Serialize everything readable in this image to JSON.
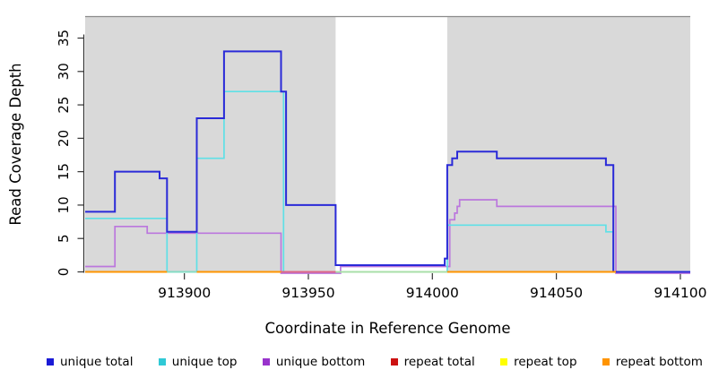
{
  "figure": {
    "background": "#ffffff",
    "plot_background": "#d9d9d9",
    "highlight_background": "#ffffff"
  },
  "x_axis": {
    "label": "Coordinate in Reference Genome",
    "ticks": [
      913900,
      913950,
      914000,
      914050,
      914100
    ]
  },
  "y_axis": {
    "label": "Read Coverage Depth",
    "ticks": [
      0,
      5,
      10,
      15,
      20,
      25,
      30,
      35
    ]
  },
  "legend": {
    "items": [
      {
        "label": "unique total",
        "color": "#1a1ad6"
      },
      {
        "label": "unique top",
        "color": "#2fc9d6"
      },
      {
        "label": "unique bottom",
        "color": "#9933cc"
      },
      {
        "label": "repeat total",
        "color": "#cc1111"
      },
      {
        "label": "repeat top",
        "color": "#ffff00"
      },
      {
        "label": "repeat bottom",
        "color": "#ff9400"
      }
    ]
  },
  "chart_data": {
    "type": "line",
    "step": true,
    "title": "",
    "xlabel": "Coordinate in Reference Genome",
    "ylabel": "Read Coverage Depth",
    "x_range": [
      913860,
      914104
    ],
    "y_range": [
      0,
      38
    ],
    "grid": false,
    "white_highlight_region": [
      913961,
      914006
    ],
    "series": [
      {
        "name": "unique total",
        "color": "#2a2ad8",
        "width": 2.0,
        "points": [
          [
            913860,
            9
          ],
          [
            913872,
            15
          ],
          [
            913890,
            14
          ],
          [
            913893,
            6
          ],
          [
            913905,
            23
          ],
          [
            913916,
            33
          ],
          [
            913939,
            27
          ],
          [
            913941,
            10
          ],
          [
            913961,
            1
          ],
          [
            914005,
            2
          ],
          [
            914006,
            16
          ],
          [
            914008,
            17
          ],
          [
            914010,
            18
          ],
          [
            914026,
            17
          ],
          [
            914070,
            16
          ],
          [
            914073,
            0
          ],
          [
            914104,
            0
          ]
        ]
      },
      {
        "name": "unique top",
        "color": "#5fe0e6",
        "width": 1.7,
        "points": [
          [
            913860,
            8
          ],
          [
            913893,
            0
          ],
          [
            913905,
            17
          ],
          [
            913916,
            27
          ],
          [
            913940,
            0
          ],
          [
            914006,
            7
          ],
          [
            914070,
            6
          ],
          [
            914073,
            0
          ],
          [
            914104,
            0
          ]
        ]
      },
      {
        "name": "unique bottom",
        "color": "#bb77dd",
        "width": 1.7,
        "points": [
          [
            913860,
            1
          ],
          [
            913872,
            7
          ],
          [
            913885,
            6
          ],
          [
            913939,
            0
          ],
          [
            913963,
            1
          ],
          [
            914007,
            8
          ],
          [
            914009,
            9
          ],
          [
            914010,
            10
          ],
          [
            914011,
            11
          ],
          [
            914026,
            10
          ],
          [
            914074,
            0
          ],
          [
            914104,
            0
          ]
        ]
      },
      {
        "name": "repeat total",
        "color": "#cc1111",
        "width": 1.7,
        "points": [
          [
            913860,
            0
          ],
          [
            914074,
            0
          ]
        ]
      },
      {
        "name": "repeat top",
        "color": "#ffff00",
        "width": 1.7,
        "points": [
          [
            913860,
            0
          ],
          [
            914074,
            0
          ]
        ]
      },
      {
        "name": "repeat bottom",
        "color": "#ff9400",
        "width": 2.0,
        "points": [
          [
            913860,
            0
          ],
          [
            914074,
            0
          ]
        ]
      }
    ],
    "baseline_overlap_segments": [
      {
        "from": 913893,
        "to": 913905,
        "color": "#84dcc4"
      },
      {
        "from": 913939,
        "to": 913961,
        "color": "#dd6688"
      },
      {
        "from": 913961,
        "to": 914006,
        "color": "#a8dfa8"
      }
    ]
  }
}
